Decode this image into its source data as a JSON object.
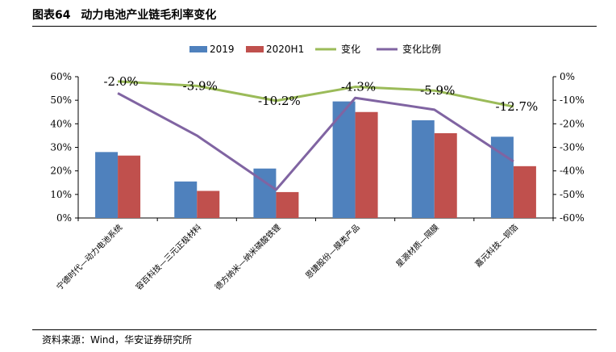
{
  "header": {
    "figure_no": "图表64",
    "title": "动力电池产业链毛利率变化"
  },
  "source": "资料来源：Wind，华安证券研究所",
  "colors": {
    "bar2019": "#4f81bd",
    "bar2020": "#c0504d",
    "line_change": "#9bbb59",
    "line_ratio": "#8064a2"
  },
  "chart_data": {
    "type": "bar",
    "title": "动力电池产业链毛利率变化",
    "categories": [
      "宁德时代—动力电池系统",
      "容百科技—三元正极材料",
      "德方纳米—纳米磷酸铁锂",
      "恩捷股份—膜类产品",
      "星源材质—隔膜",
      "嘉元科技—铜箔"
    ],
    "y_left": {
      "min": 0,
      "max": 60,
      "step": 10,
      "tick_labels": [
        "0%",
        "10%",
        "20%",
        "30%",
        "40%",
        "50%",
        "60%"
      ]
    },
    "y_right": {
      "min": -60,
      "max": 0,
      "step": 10,
      "tick_labels": [
        "-60%",
        "-50%",
        "-40%",
        "-30%",
        "-20%",
        "-10%",
        "0%"
      ]
    },
    "series": [
      {
        "name": "2019",
        "kind": "bar",
        "axis": "left",
        "values": [
          28,
          15.5,
          21,
          49.5,
          41.5,
          34.5
        ]
      },
      {
        "name": "2020H1",
        "kind": "bar",
        "axis": "left",
        "values": [
          26.5,
          11.5,
          11,
          45,
          36,
          22
        ]
      },
      {
        "name": "变化",
        "kind": "line",
        "axis": "right",
        "values": [
          -2.0,
          -3.9,
          -10.2,
          -4.3,
          -5.9,
          -12.7
        ],
        "labels": [
          "-2.0%",
          "-3.9%",
          "-10.2%",
          "-4.3%",
          "-5.9%",
          "-12.7%"
        ]
      },
      {
        "name": "变化比例",
        "kind": "line",
        "axis": "right",
        "values": [
          -7,
          -25,
          -48,
          -9,
          -14,
          -36
        ]
      }
    ],
    "legend": [
      "2019",
      "2020H1",
      "变化",
      "变化比例"
    ],
    "legend_position": "top-center"
  }
}
